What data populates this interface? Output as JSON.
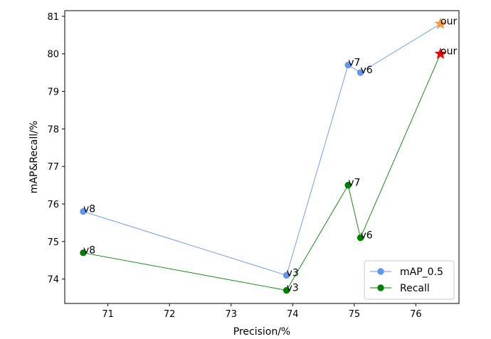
{
  "chart_data": {
    "type": "line",
    "title": "",
    "xlabel": "Precision/%",
    "ylabel": "mAP&Recall/%",
    "xlim": [
      70.3,
      76.7
    ],
    "ylim": [
      73.35,
      81.15
    ],
    "xticks": [
      71,
      72,
      73,
      74,
      75,
      76
    ],
    "yticks": [
      74,
      75,
      76,
      77,
      78,
      79,
      80,
      81
    ],
    "grid": false,
    "legend_position": "lower-right",
    "series": [
      {
        "name": "mAP_0.5",
        "color": "#6495ed",
        "marker": "circle",
        "points": [
          {
            "x": 70.6,
            "y": 75.8,
            "label": "v8"
          },
          {
            "x": 73.9,
            "y": 74.1,
            "label": "v3"
          },
          {
            "x": 74.9,
            "y": 79.7,
            "label": "v7"
          },
          {
            "x": 75.1,
            "y": 79.5,
            "label": "v6"
          },
          {
            "x": 76.4,
            "y": 80.8,
            "label": "our",
            "marker": "star",
            "marker_color": "#ff9933"
          }
        ]
      },
      {
        "name": "Recall",
        "color": "#008000",
        "marker": "circle",
        "points": [
          {
            "x": 70.6,
            "y": 74.7,
            "label": "v8"
          },
          {
            "x": 73.9,
            "y": 73.7,
            "label": "v3"
          },
          {
            "x": 74.9,
            "y": 76.5,
            "label": "v7"
          },
          {
            "x": 75.1,
            "y": 75.1,
            "label": "v6"
          },
          {
            "x": 76.4,
            "y": 80.0,
            "label": "our",
            "marker": "star",
            "marker_color": "#ff0000"
          }
        ]
      }
    ]
  }
}
